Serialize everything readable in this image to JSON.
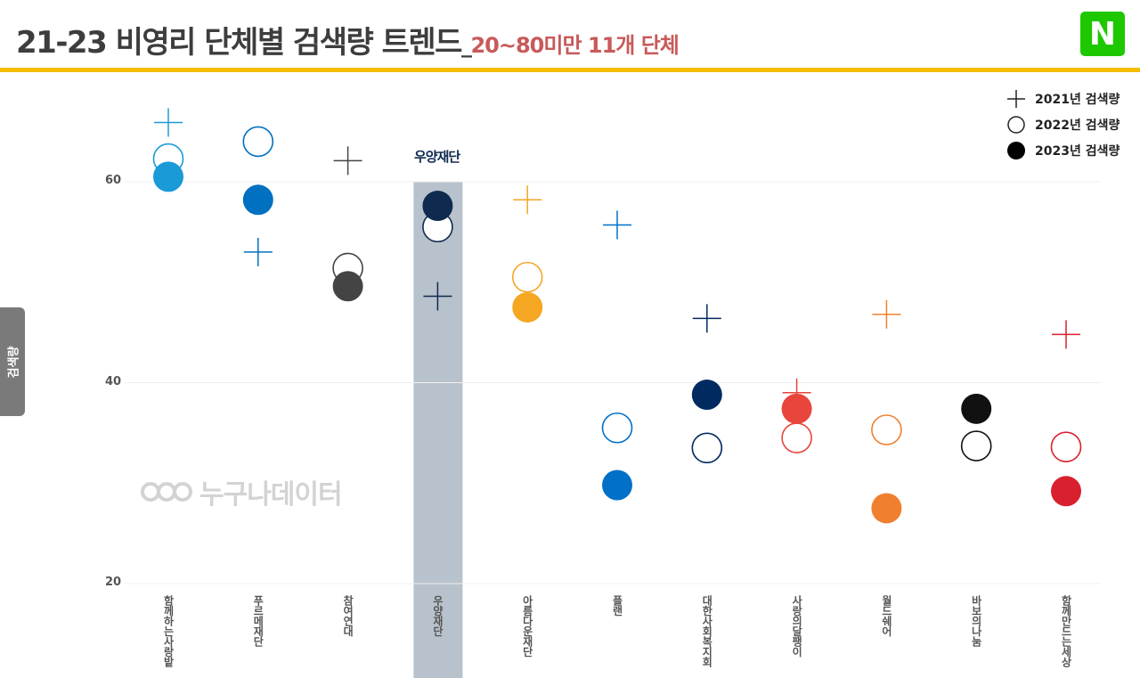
{
  "header": {
    "title": "21-23 비영리 단체별 검색량 트렌드",
    "separator": "_",
    "subtitle": "20~80미만 11개 단체",
    "brand_badge": "N",
    "brand_color": "#1ec800",
    "rule_color": "#f5bd00"
  },
  "legend": {
    "items": [
      {
        "marker": "cross",
        "label": "2021년 검색량"
      },
      {
        "marker": "open-circle",
        "label": "2022년 검색량"
      },
      {
        "marker": "filled-circle",
        "label": "2023년 검색량"
      }
    ]
  },
  "yaxis_tab": "검색량",
  "watermark": "누구나데이터",
  "highlight": {
    "category": "우양재단",
    "logo_text": "우양재단",
    "band_color": "#b8c2cc"
  },
  "chart_data": {
    "type": "scatter",
    "title": "21-23 비영리 단체별 검색량 트렌드_20~80미만 11개 단체",
    "xlabel": "",
    "ylabel": "검색량",
    "ylim": [
      20,
      67
    ],
    "yticks": [
      20,
      40,
      60
    ],
    "grid": true,
    "legend_position": "top-right",
    "categories": [
      "함께하는사랑밭",
      "푸르메재단",
      "참여연대",
      "우양재단",
      "아름다운재단",
      "플랜",
      "대한사회복지회",
      "사랑의달팽이",
      "월드쉐어",
      "바보의나눔",
      "함께만드는세상"
    ],
    "colors": [
      "#1a9ad6",
      "#0070c0",
      "#444444",
      "#0f2a4f",
      "#f5a623",
      "#0070c8",
      "#002a60",
      "#e8453c",
      "#f08030",
      "#111111",
      "#d9202e"
    ],
    "series": [
      {
        "name": "2021년 검색량",
        "marker": "cross",
        "values": [
          65.9,
          53.0,
          62.1,
          48.6,
          58.2,
          55.7,
          46.4,
          39.0,
          46.8,
          null,
          44.8
        ]
      },
      {
        "name": "2022년 검색량",
        "marker": "open-circle",
        "values": [
          62.3,
          64.0,
          51.4,
          55.5,
          50.5,
          35.5,
          33.5,
          34.5,
          35.3,
          33.7,
          33.6
        ]
      },
      {
        "name": "2023년 검색량",
        "marker": "filled-circle",
        "values": [
          60.5,
          58.2,
          49.6,
          57.6,
          47.5,
          29.8,
          38.8,
          37.4,
          27.5,
          37.4,
          29.2
        ]
      }
    ]
  }
}
